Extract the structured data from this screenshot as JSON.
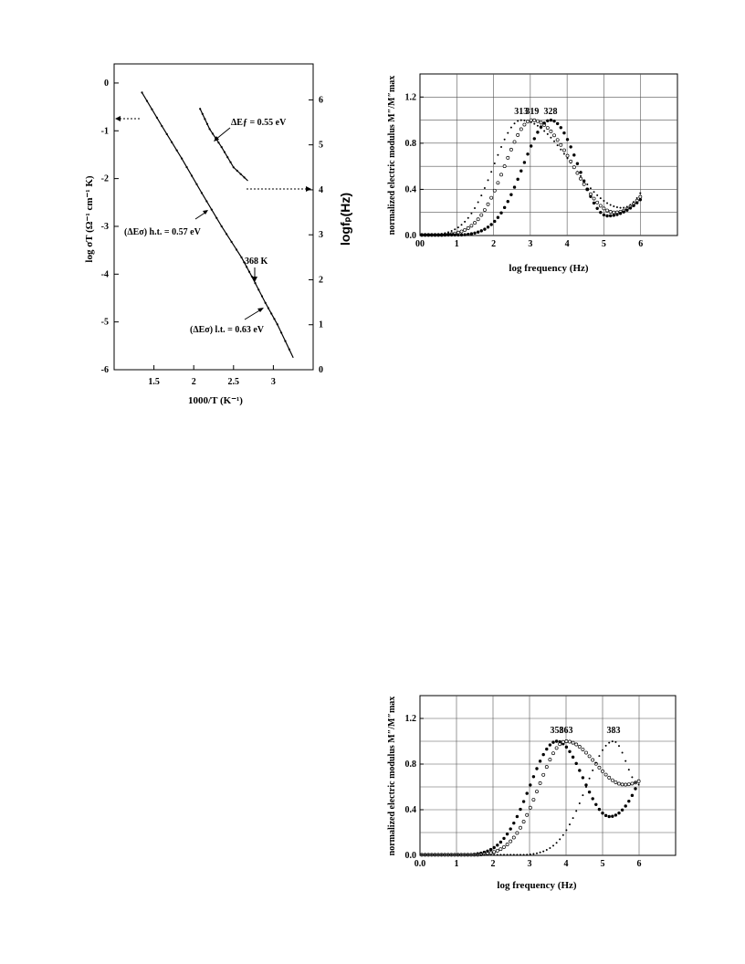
{
  "chart_data": [
    {
      "type": "line",
      "xlabel": "1000/T  (K⁻¹)",
      "ylabel": "log σT  (Ω⁻¹ cm⁻¹ K)",
      "y2label": "logfₚ(Hz)",
      "xlim": [
        1.0,
        3.5
      ],
      "ylim": [
        -6,
        0.4
      ],
      "y2lim": [
        0,
        6.8
      ],
      "xticks": [
        "1.5",
        "2",
        "2.5",
        "3"
      ],
      "yticks": [
        "0",
        "-1",
        "-2",
        "-3",
        "-4",
        "-5",
        "-6"
      ],
      "y2ticks": [
        "0",
        "1",
        "2",
        "3",
        "4",
        "5",
        "6"
      ],
      "series": [
        {
          "axis": "left",
          "x": [
            1.35,
            1.6,
            1.85,
            2.1,
            2.35,
            2.6,
            2.73,
            2.9,
            3.05,
            3.25
          ],
          "y": [
            -0.2,
            -0.9,
            -1.58,
            -2.3,
            -3.0,
            -3.65,
            -4.05,
            -4.6,
            -5.05,
            -5.75
          ]
        },
        {
          "axis": "right",
          "x": [
            2.08,
            2.2,
            2.35,
            2.5,
            2.68
          ],
          "y": [
            5.8,
            5.35,
            4.95,
            4.5,
            4.2
          ]
        }
      ],
      "annotations": {
        "ef": "ΔEƒ = 0.55 eV",
        "ht": "(ΔEσ) h.t. = 0.57 eV",
        "temp": "368 K",
        "lt": "(ΔEσ) l.t. = 0.63 eV"
      }
    },
    {
      "type": "scatter",
      "xlabel": "log frequency  (Hz)",
      "ylabel": "normalized electric modulus M″/M″max",
      "xlim": [
        0,
        7
      ],
      "ylim": [
        0,
        1.4
      ],
      "xticks": [
        "00",
        "1",
        "2",
        "3",
        "4",
        "5",
        "6"
      ],
      "yticks": [
        "0.0",
        "0.4",
        "0.8",
        "1.2"
      ],
      "series": [
        {
          "name": "313",
          "peak_x": 2.75,
          "min_x": 5.5,
          "min_y": 0.24,
          "end_y": 0.4,
          "symbol": "small-dot"
        },
        {
          "name": "319",
          "peak_x": 3.05,
          "min_x": 5.3,
          "min_y": 0.2,
          "end_y": 0.36,
          "symbol": "open-circle"
        },
        {
          "name": "328",
          "peak_x": 3.55,
          "min_x": 5.1,
          "min_y": 0.17,
          "end_y": 0.33,
          "symbol": "filled-dot"
        }
      ],
      "peak_labels": [
        "313",
        "319",
        "328"
      ]
    },
    {
      "type": "scatter",
      "xlabel": "log frequency  (Hz)",
      "ylabel": "normalized electric modulus M″/M″max",
      "xlim": [
        0,
        7
      ],
      "ylim": [
        0,
        1.4
      ],
      "xticks": [
        "0.0",
        "1",
        "2",
        "3",
        "4",
        "5",
        "6"
      ],
      "yticks": [
        "0.0",
        "0.4",
        "0.8",
        "1.2"
      ],
      "series": [
        {
          "name": "358",
          "peak_x": 3.75,
          "min_x": 5.2,
          "min_y": 0.34,
          "end_y": 0.7,
          "symbol": "filled-dot"
        },
        {
          "name": "363",
          "peak_x": 4.0,
          "min_x": 5.6,
          "min_y": 0.62,
          "end_y": 0.66,
          "symbol": "open-circle"
        },
        {
          "name": "383",
          "peak_x": 5.3,
          "min_x": 6.0,
          "min_y": 0.62,
          "end_y": 0.62,
          "symbol": "small-dot"
        }
      ],
      "peak_labels": [
        "358",
        "363",
        "383"
      ]
    }
  ]
}
